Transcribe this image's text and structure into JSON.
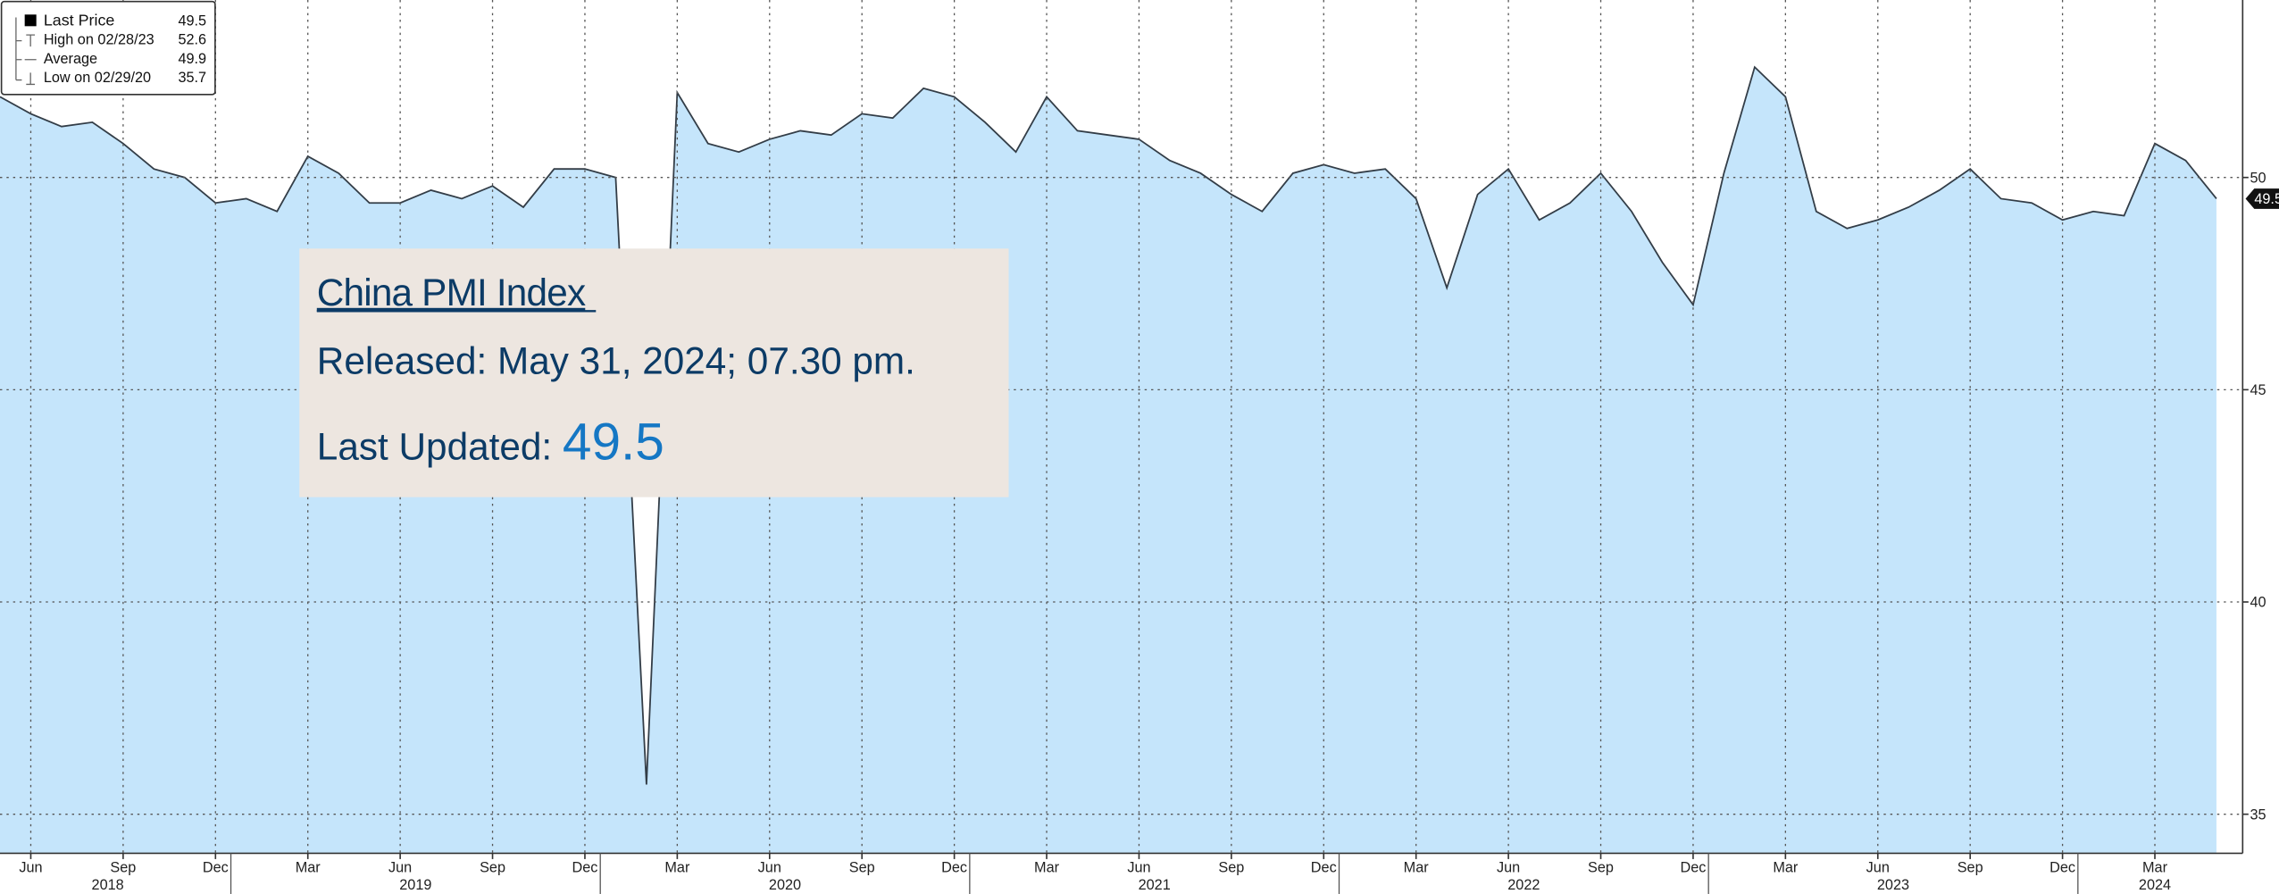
{
  "chart_data": {
    "type": "area",
    "x": [
      "2018-05",
      "2018-06",
      "2018-07",
      "2018-08",
      "2018-09",
      "2018-10",
      "2018-11",
      "2018-12",
      "2019-01",
      "2019-02",
      "2019-03",
      "2019-04",
      "2019-05",
      "2019-06",
      "2019-07",
      "2019-08",
      "2019-09",
      "2019-10",
      "2019-11",
      "2019-12",
      "2020-01",
      "2020-02",
      "2020-03",
      "2020-04",
      "2020-05",
      "2020-06",
      "2020-07",
      "2020-08",
      "2020-09",
      "2020-10",
      "2020-11",
      "2020-12",
      "2021-01",
      "2021-02",
      "2021-03",
      "2021-04",
      "2021-05",
      "2021-06",
      "2021-07",
      "2021-08",
      "2021-09",
      "2021-10",
      "2021-11",
      "2021-12",
      "2022-01",
      "2022-02",
      "2022-03",
      "2022-04",
      "2022-05",
      "2022-06",
      "2022-07",
      "2022-08",
      "2022-09",
      "2022-10",
      "2022-11",
      "2022-12",
      "2023-01",
      "2023-02",
      "2023-03",
      "2023-04",
      "2023-05",
      "2023-06",
      "2023-07",
      "2023-08",
      "2023-09",
      "2023-10",
      "2023-11",
      "2023-12",
      "2024-01",
      "2024-02",
      "2024-03",
      "2024-04",
      "2024-05"
    ],
    "series": [
      {
        "name": "Last Price",
        "color": "#333d47",
        "fill": "#c5e5fb",
        "values": [
          51.9,
          51.5,
          51.2,
          51.3,
          50.8,
          50.2,
          50.0,
          49.4,
          49.5,
          49.2,
          50.5,
          50.1,
          49.4,
          49.4,
          49.7,
          49.5,
          49.8,
          49.3,
          50.2,
          50.2,
          50.0,
          35.7,
          52.0,
          50.8,
          50.6,
          50.9,
          51.1,
          51.0,
          51.5,
          51.4,
          52.1,
          51.9,
          51.3,
          50.6,
          51.9,
          51.1,
          51.0,
          50.9,
          50.4,
          50.1,
          49.6,
          49.2,
          50.1,
          50.3,
          50.1,
          50.2,
          49.5,
          47.4,
          49.6,
          50.2,
          49.0,
          49.4,
          50.1,
          49.2,
          48.0,
          47.0,
          50.1,
          52.6,
          51.9,
          49.2,
          48.8,
          49.0,
          49.3,
          49.7,
          50.2,
          49.5,
          49.4,
          49.0,
          49.2,
          49.1,
          50.8,
          50.4,
          49.5
        ]
      }
    ],
    "ylim": [
      34.08,
      54.18
    ],
    "yticks": [
      35,
      40,
      45,
      50
    ],
    "xticks": [
      {
        "value": "2018-06",
        "label": "Jun"
      },
      {
        "value": "2018-09",
        "label": "Sep"
      },
      {
        "value": "2018-12",
        "label": "Dec"
      },
      {
        "value": "2019-03",
        "label": "Mar"
      },
      {
        "value": "2019-06",
        "label": "Jun"
      },
      {
        "value": "2019-09",
        "label": "Sep"
      },
      {
        "value": "2019-12",
        "label": "Dec"
      },
      {
        "value": "2020-03",
        "label": "Mar"
      },
      {
        "value": "2020-06",
        "label": "Jun"
      },
      {
        "value": "2020-09",
        "label": "Sep"
      },
      {
        "value": "2020-12",
        "label": "Dec"
      },
      {
        "value": "2021-03",
        "label": "Mar"
      },
      {
        "value": "2021-06",
        "label": "Jun"
      },
      {
        "value": "2021-09",
        "label": "Sep"
      },
      {
        "value": "2021-12",
        "label": "Dec"
      },
      {
        "value": "2022-03",
        "label": "Mar"
      },
      {
        "value": "2022-06",
        "label": "Jun"
      },
      {
        "value": "2022-09",
        "label": "Sep"
      },
      {
        "value": "2022-12",
        "label": "Dec"
      },
      {
        "value": "2023-03",
        "label": "Mar"
      },
      {
        "value": "2023-06",
        "label": "Jun"
      },
      {
        "value": "2023-09",
        "label": "Sep"
      },
      {
        "value": "2023-12",
        "label": "Dec"
      },
      {
        "value": "2024-03",
        "label": "Mar"
      }
    ],
    "years": [
      "2018",
      "2019",
      "2020",
      "2021",
      "2022",
      "2023",
      "2024"
    ],
    "grid": true,
    "legend": [
      {
        "label": "Last Price",
        "value": 49.5
      },
      {
        "label": "High on 02/28/23",
        "value": 52.6
      },
      {
        "label": "Average",
        "value": 49.9
      },
      {
        "label": "Low on 02/29/20",
        "value": 35.7
      }
    ],
    "overlay": {
      "title": "China PMI Index",
      "released": "Released: May 31, 2024; 07.30 pm.",
      "updated_label": "Last Updated:",
      "updated_value": "49.5"
    }
  }
}
